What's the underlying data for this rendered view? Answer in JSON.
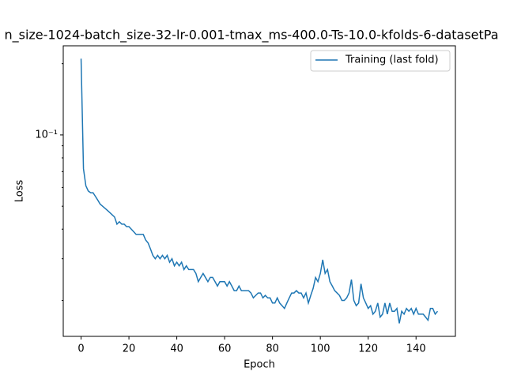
{
  "chart_data": {
    "type": "line",
    "title": "n_size-1024-batch_size-32-lr-0.001-tmax_ms-400.0-Ts-10.0-kfolds-6-datasetPa",
    "x_label": "Epoch",
    "y_label": "Loss",
    "yscale": "log",
    "legend": "upper right",
    "xlim": [
      -7.45,
      156.45
    ],
    "xticks": [
      0,
      20,
      40,
      60,
      80,
      100,
      120,
      140
    ],
    "ylim": [
      0.0141,
      0.238
    ],
    "yticks": [
      {
        "value": 0.1,
        "label": "10⁻¹"
      }
    ],
    "yminorticks": [
      0.02,
      0.03,
      0.04,
      0.05,
      0.06,
      0.07,
      0.08,
      0.09,
      0.2
    ],
    "x": [
      0,
      1,
      2,
      3,
      4,
      5,
      6,
      7,
      8,
      9,
      10,
      11,
      12,
      13,
      14,
      15,
      16,
      17,
      18,
      19,
      20,
      21,
      22,
      23,
      24,
      25,
      26,
      27,
      28,
      29,
      30,
      31,
      32,
      33,
      34,
      35,
      36,
      37,
      38,
      39,
      40,
      41,
      42,
      43,
      44,
      45,
      46,
      47,
      48,
      49,
      50,
      51,
      52,
      53,
      54,
      55,
      56,
      57,
      58,
      59,
      60,
      61,
      62,
      63,
      64,
      65,
      66,
      67,
      68,
      69,
      70,
      71,
      72,
      73,
      74,
      75,
      76,
      77,
      78,
      79,
      80,
      81,
      82,
      83,
      84,
      85,
      86,
      87,
      88,
      89,
      90,
      91,
      92,
      93,
      94,
      95,
      96,
      97,
      98,
      99,
      100,
      101,
      102,
      103,
      104,
      105,
      106,
      107,
      108,
      109,
      110,
      111,
      112,
      113,
      114,
      115,
      116,
      117,
      118,
      119,
      120,
      121,
      122,
      123,
      124,
      125,
      126,
      127,
      128,
      129,
      130,
      131,
      132,
      133,
      134,
      135,
      136,
      137,
      138,
      139,
      140,
      141,
      142,
      143,
      144,
      145,
      146,
      147,
      148,
      149
    ],
    "series": [
      {
        "name": "Training (last fold)",
        "color": "#1f77b4",
        "values": [
          0.21,
          0.072,
          0.061,
          0.058,
          0.057,
          0.057,
          0.055,
          0.053,
          0.051,
          0.05,
          0.049,
          0.048,
          0.047,
          0.046,
          0.045,
          0.042,
          0.043,
          0.042,
          0.042,
          0.041,
          0.041,
          0.04,
          0.039,
          0.038,
          0.038,
          0.038,
          0.038,
          0.036,
          0.035,
          0.033,
          0.031,
          0.03,
          0.031,
          0.03,
          0.031,
          0.03,
          0.031,
          0.029,
          0.03,
          0.028,
          0.029,
          0.028,
          0.029,
          0.027,
          0.028,
          0.027,
          0.027,
          0.027,
          0.026,
          0.024,
          0.025,
          0.026,
          0.025,
          0.024,
          0.025,
          0.025,
          0.024,
          0.023,
          0.024,
          0.024,
          0.024,
          0.023,
          0.024,
          0.023,
          0.022,
          0.022,
          0.023,
          0.022,
          0.022,
          0.022,
          0.022,
          0.0215,
          0.0205,
          0.021,
          0.0215,
          0.0215,
          0.0205,
          0.021,
          0.0205,
          0.0205,
          0.0195,
          0.0195,
          0.0205,
          0.0195,
          0.019,
          0.0185,
          0.0195,
          0.0205,
          0.0215,
          0.0215,
          0.022,
          0.0215,
          0.0215,
          0.0205,
          0.0215,
          0.0195,
          0.021,
          0.0225,
          0.025,
          0.024,
          0.026,
          0.0297,
          0.026,
          0.027,
          0.024,
          0.023,
          0.022,
          0.0215,
          0.021,
          0.02,
          0.02,
          0.0205,
          0.0215,
          0.0245,
          0.02,
          0.019,
          0.0195,
          0.0235,
          0.0205,
          0.0195,
          0.0185,
          0.019,
          0.0175,
          0.018,
          0.0195,
          0.017,
          0.0175,
          0.0195,
          0.0175,
          0.0195,
          0.018,
          0.018,
          0.0185,
          0.016,
          0.018,
          0.0175,
          0.0185,
          0.018,
          0.0185,
          0.0175,
          0.0185,
          0.0175,
          0.0175,
          0.0175,
          0.017,
          0.0165,
          0.0185,
          0.0185,
          0.0175,
          0.018
        ]
      }
    ]
  }
}
